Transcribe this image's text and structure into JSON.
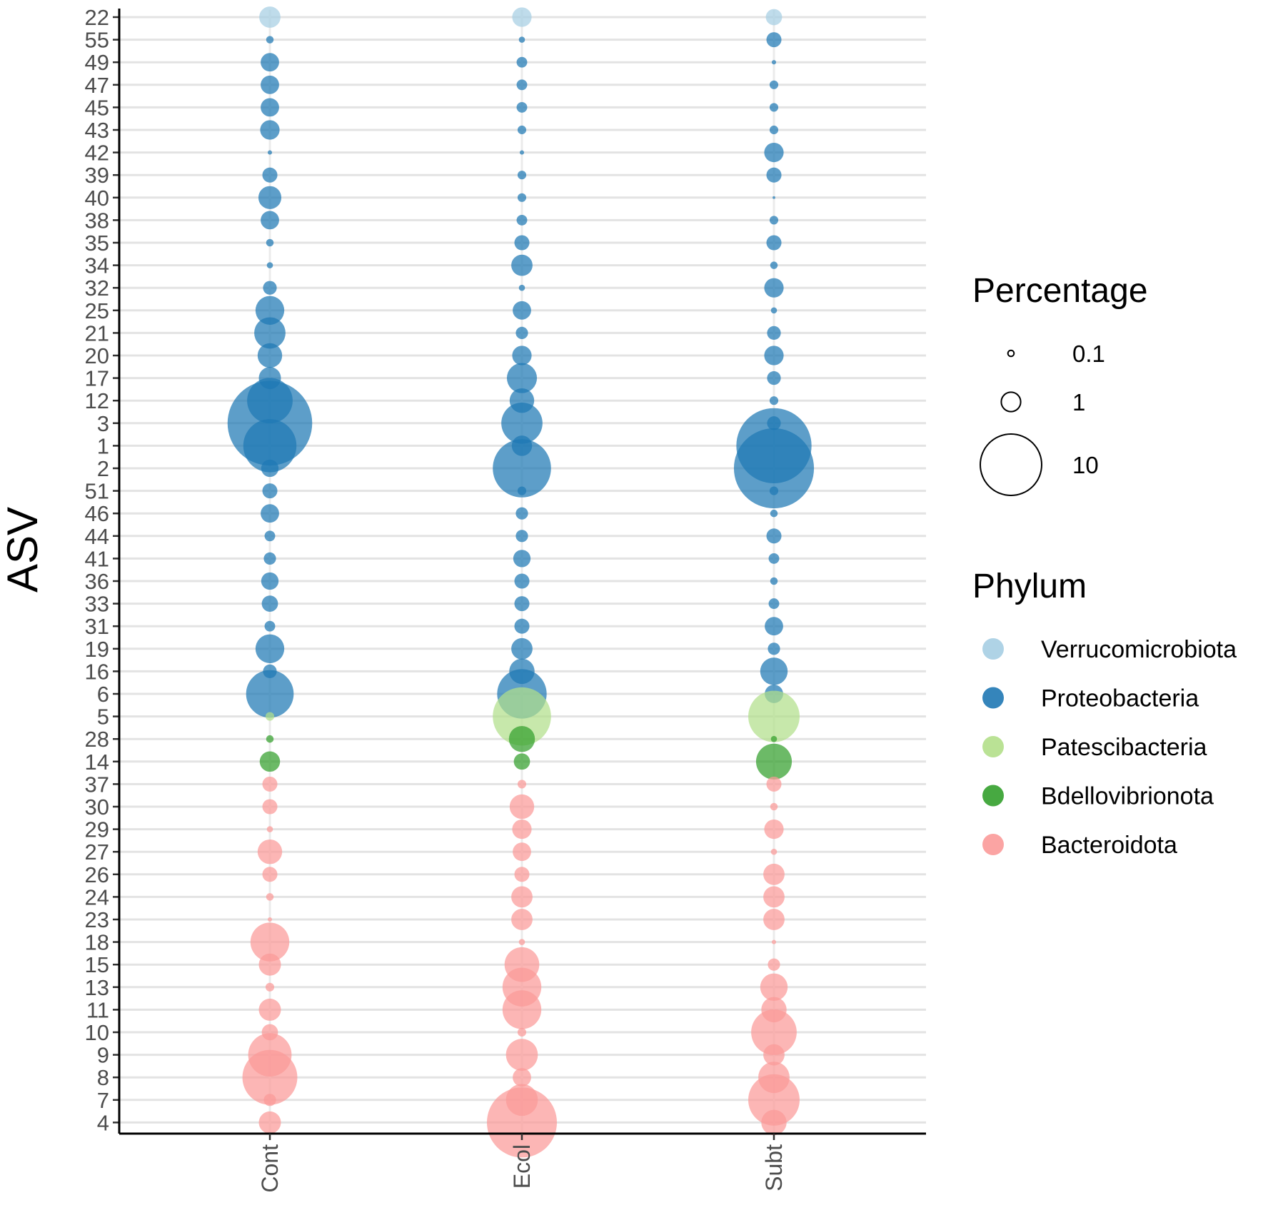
{
  "chart_data": {
    "type": "scatter",
    "subtype": "bubble",
    "title": "",
    "xlabel": "",
    "ylabel": "ASV",
    "categories": [
      "Cont",
      "Ecol",
      "Subt"
    ],
    "asv_order_top_to_bottom": [
      "22",
      "55",
      "49",
      "47",
      "45",
      "43",
      "42",
      "39",
      "40",
      "38",
      "35",
      "34",
      "32",
      "25",
      "21",
      "20",
      "17",
      "12",
      "3",
      "1",
      "2",
      "51",
      "46",
      "44",
      "41",
      "36",
      "33",
      "31",
      "19",
      "16",
      "6",
      "5",
      "28",
      "14",
      "37",
      "30",
      "29",
      "27",
      "26",
      "24",
      "23",
      "18",
      "15",
      "13",
      "11",
      "10",
      "9",
      "8",
      "7",
      "4"
    ],
    "asv_phylum": {
      "22": "Verrucomicrobiota",
      "55": "Proteobacteria",
      "49": "Proteobacteria",
      "47": "Proteobacteria",
      "45": "Proteobacteria",
      "43": "Proteobacteria",
      "42": "Proteobacteria",
      "39": "Proteobacteria",
      "40": "Proteobacteria",
      "38": "Proteobacteria",
      "35": "Proteobacteria",
      "34": "Proteobacteria",
      "32": "Proteobacteria",
      "25": "Proteobacteria",
      "21": "Proteobacteria",
      "20": "Proteobacteria",
      "17": "Proteobacteria",
      "12": "Proteobacteria",
      "3": "Proteobacteria",
      "1": "Proteobacteria",
      "2": "Proteobacteria",
      "51": "Proteobacteria",
      "46": "Proteobacteria",
      "44": "Proteobacteria",
      "41": "Proteobacteria",
      "36": "Proteobacteria",
      "33": "Proteobacteria",
      "31": "Proteobacteria",
      "19": "Proteobacteria",
      "16": "Proteobacteria",
      "6": "Proteobacteria",
      "5": "Patescibacteria",
      "28": "Bdellovibrionota",
      "14": "Bdellovibrionota",
      "37": "Bacteroidota",
      "30": "Bacteroidota",
      "29": "Bacteroidota",
      "27": "Bacteroidota",
      "26": "Bacteroidota",
      "24": "Bacteroidota",
      "23": "Bacteroidota",
      "18": "Bacteroidota",
      "15": "Bacteroidota",
      "13": "Bacteroidota",
      "11": "Bacteroidota",
      "10": "Bacteroidota",
      "9": "Bacteroidota",
      "8": "Bacteroidota",
      "7": "Bacteroidota",
      "4": "Bacteroidota"
    },
    "percentages": {
      "Cont": {
        "22": 1.2,
        "55": 0.15,
        "49": 0.9,
        "47": 0.9,
        "45": 0.9,
        "43": 1.0,
        "42": 0.05,
        "39": 0.6,
        "40": 1.4,
        "38": 0.9,
        "35": 0.15,
        "34": 0.1,
        "32": 0.5,
        "25": 2.2,
        "21": 2.6,
        "20": 1.6,
        "17": 1.3,
        "12": 5.5,
        "3": 19.0,
        "1": 7.5,
        "2": 0.8,
        "51": 0.6,
        "46": 0.9,
        "44": 0.3,
        "41": 0.4,
        "36": 0.8,
        "33": 0.7,
        "31": 0.3,
        "19": 2.2,
        "16": 0.5,
        "6": 6.0,
        "5": 0.2,
        "28": 0.15,
        "14": 1.1,
        "37": 0.6,
        "30": 0.6,
        "29": 0.1,
        "27": 1.6,
        "26": 0.6,
        "24": 0.15,
        "23": 0.05,
        "18": 4.0,
        "15": 1.3,
        "13": 0.2,
        "11": 1.3,
        "10": 0.7,
        "9": 5.0,
        "8": 8.0,
        "7": 0.4,
        "4": 1.3
      },
      "Ecol": {
        "22": 1.0,
        "55": 0.1,
        "49": 0.3,
        "47": 0.3,
        "45": 0.3,
        "43": 0.2,
        "42": 0.05,
        "39": 0.2,
        "40": 0.2,
        "38": 0.3,
        "35": 0.6,
        "34": 1.2,
        "32": 0.1,
        "25": 0.9,
        "21": 0.4,
        "20": 1.0,
        "17": 2.4,
        "12": 1.6,
        "3": 4.5,
        "1": 1.1,
        "2": 9.0,
        "51": 0.2,
        "46": 0.4,
        "44": 0.4,
        "41": 0.8,
        "36": 0.6,
        "33": 0.6,
        "31": 0.6,
        "19": 1.2,
        "16": 1.7,
        "6": 6.5,
        "5": 9.0,
        "28": 1.8,
        "14": 0.7,
        "37": 0.2,
        "30": 1.6,
        "29": 1.0,
        "27": 0.9,
        "26": 0.6,
        "24": 1.2,
        "23": 1.2,
        "18": 0.1,
        "15": 3.2,
        "13": 4.0,
        "11": 4.0,
        "10": 0.2,
        "9": 2.7,
        "8": 0.9,
        "7": 2.7,
        "4": 13.0
      },
      "Subt": {
        "22": 0.7,
        "55": 0.6,
        "49": 0.05,
        "47": 0.2,
        "45": 0.2,
        "43": 0.2,
        "42": 1.0,
        "39": 0.6,
        "40": 0.02,
        "38": 0.2,
        "35": 0.6,
        "34": 0.15,
        "32": 1.0,
        "25": 0.1,
        "21": 0.5,
        "20": 1.0,
        "17": 0.5,
        "12": 0.2,
        "3": 0.5,
        "1": 15.0,
        "2": 17.0,
        "51": 0.2,
        "46": 0.15,
        "44": 0.6,
        "41": 0.3,
        "36": 0.15,
        "33": 0.3,
        "31": 0.9,
        "19": 0.4,
        "16": 2.0,
        "6": 0.9,
        "5": 7.0,
        "28": 0.1,
        "14": 3.4,
        "37": 0.6,
        "30": 0.15,
        "29": 1.0,
        "27": 0.1,
        "26": 1.2,
        "24": 1.2,
        "23": 1.2,
        "18": 0.05,
        "15": 0.4,
        "13": 2.0,
        "11": 1.7,
        "10": 5.5,
        "9": 1.2,
        "8": 2.6,
        "7": 7.0,
        "4": 1.7
      }
    },
    "legend": {
      "size_title": "Percentage",
      "size_values": [
        0.1,
        1,
        10
      ],
      "size_labels": [
        "0.1",
        "1",
        "10"
      ],
      "color_title": "Phylum",
      "phyla": [
        {
          "name": "Verrucomicrobiota",
          "color": "#a6cee3"
        },
        {
          "name": "Proteobacteria",
          "color": "#1f78b4"
        },
        {
          "name": "Patescibacteria",
          "color": "#b2df8a"
        },
        {
          "name": "Bdellovibrionota",
          "color": "#33a02c"
        },
        {
          "name": "Bacteroidota",
          "color": "#fb9a99"
        }
      ],
      "placement": "right"
    },
    "grid": "horizontal"
  }
}
